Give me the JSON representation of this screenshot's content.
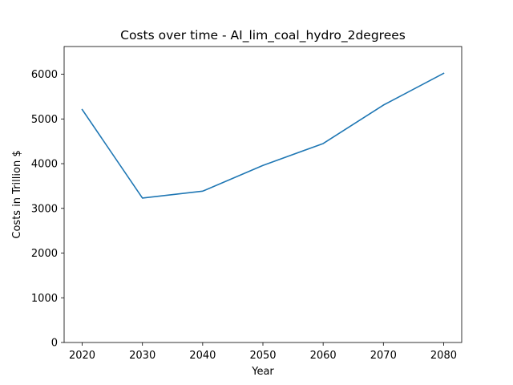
{
  "chart_data": {
    "type": "line",
    "title": "Costs over time - AI_lim_coal_hydro_2degrees",
    "xlabel": "Year",
    "ylabel": "Costs in Trillion $",
    "x": [
      2020,
      2030,
      2040,
      2050,
      2060,
      2070,
      2080
    ],
    "series": [
      {
        "values": [
          5210,
          3230,
          3385,
          3960,
          4450,
          5310,
          6020
        ],
        "color": "#1f77b4"
      }
    ],
    "xlim": [
      2017,
      2083
    ],
    "ylim": [
      0,
      6620
    ],
    "xticks": [
      2020,
      2030,
      2040,
      2050,
      2060,
      2070,
      2080
    ],
    "yticks": [
      0,
      1000,
      2000,
      3000,
      4000,
      5000,
      6000
    ],
    "grid": false,
    "legend": "none"
  }
}
